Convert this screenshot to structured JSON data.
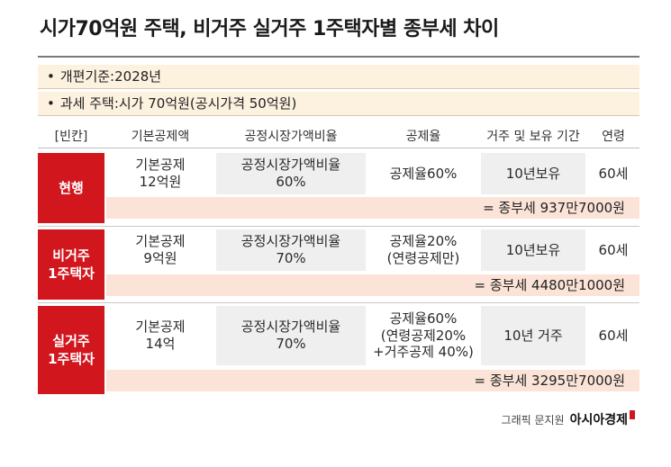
{
  "title": "시가70억원 주택, 비거주 실거주 1주택자별 종부세 차이",
  "notes": [
    "개편기준:2028년",
    "과세 주택:시가 70억원(공시가격 50억원)"
  ],
  "headers": [
    "[빈칸]",
    "기본공제액",
    "공정시장가액비율",
    "공제율",
    "거주 및 보유 기간",
    "연령"
  ],
  "rows": [
    {
      "label": "현행",
      "deduction": "기본공제\n12억원",
      "ratio": "공정시장가액비율\n60%",
      "rate": "공제율60%",
      "period": "10년보유",
      "age": "60세",
      "result": "= 종부세 937만7000원"
    },
    {
      "label": "비거주\n1주택자",
      "deduction": "기본공제\n9억원",
      "ratio": "공정시장가액비율\n70%",
      "rate": "공제율20%\n(연령공제만)",
      "period": "10년보유",
      "age": "60세",
      "result": "= 종부세 4480만1000원"
    },
    {
      "label": "실거주\n1주택자",
      "deduction": "기본공제\n14억",
      "ratio": "공정시장가액비율\n70%",
      "rate": "공제율60%\n(연령공제20%\n+거주공제 40%)",
      "period": "10년 거주",
      "age": "60세",
      "result": "= 종부세 3295만7000원"
    }
  ],
  "credit": {
    "source": "그래픽 문지원",
    "brand": "아시아경제"
  },
  "colors": {
    "accent_red": "#d2161e",
    "note_bg": "#fdf1df",
    "result_bg": "#fbe3d7",
    "cell_gray": "#efefef"
  }
}
